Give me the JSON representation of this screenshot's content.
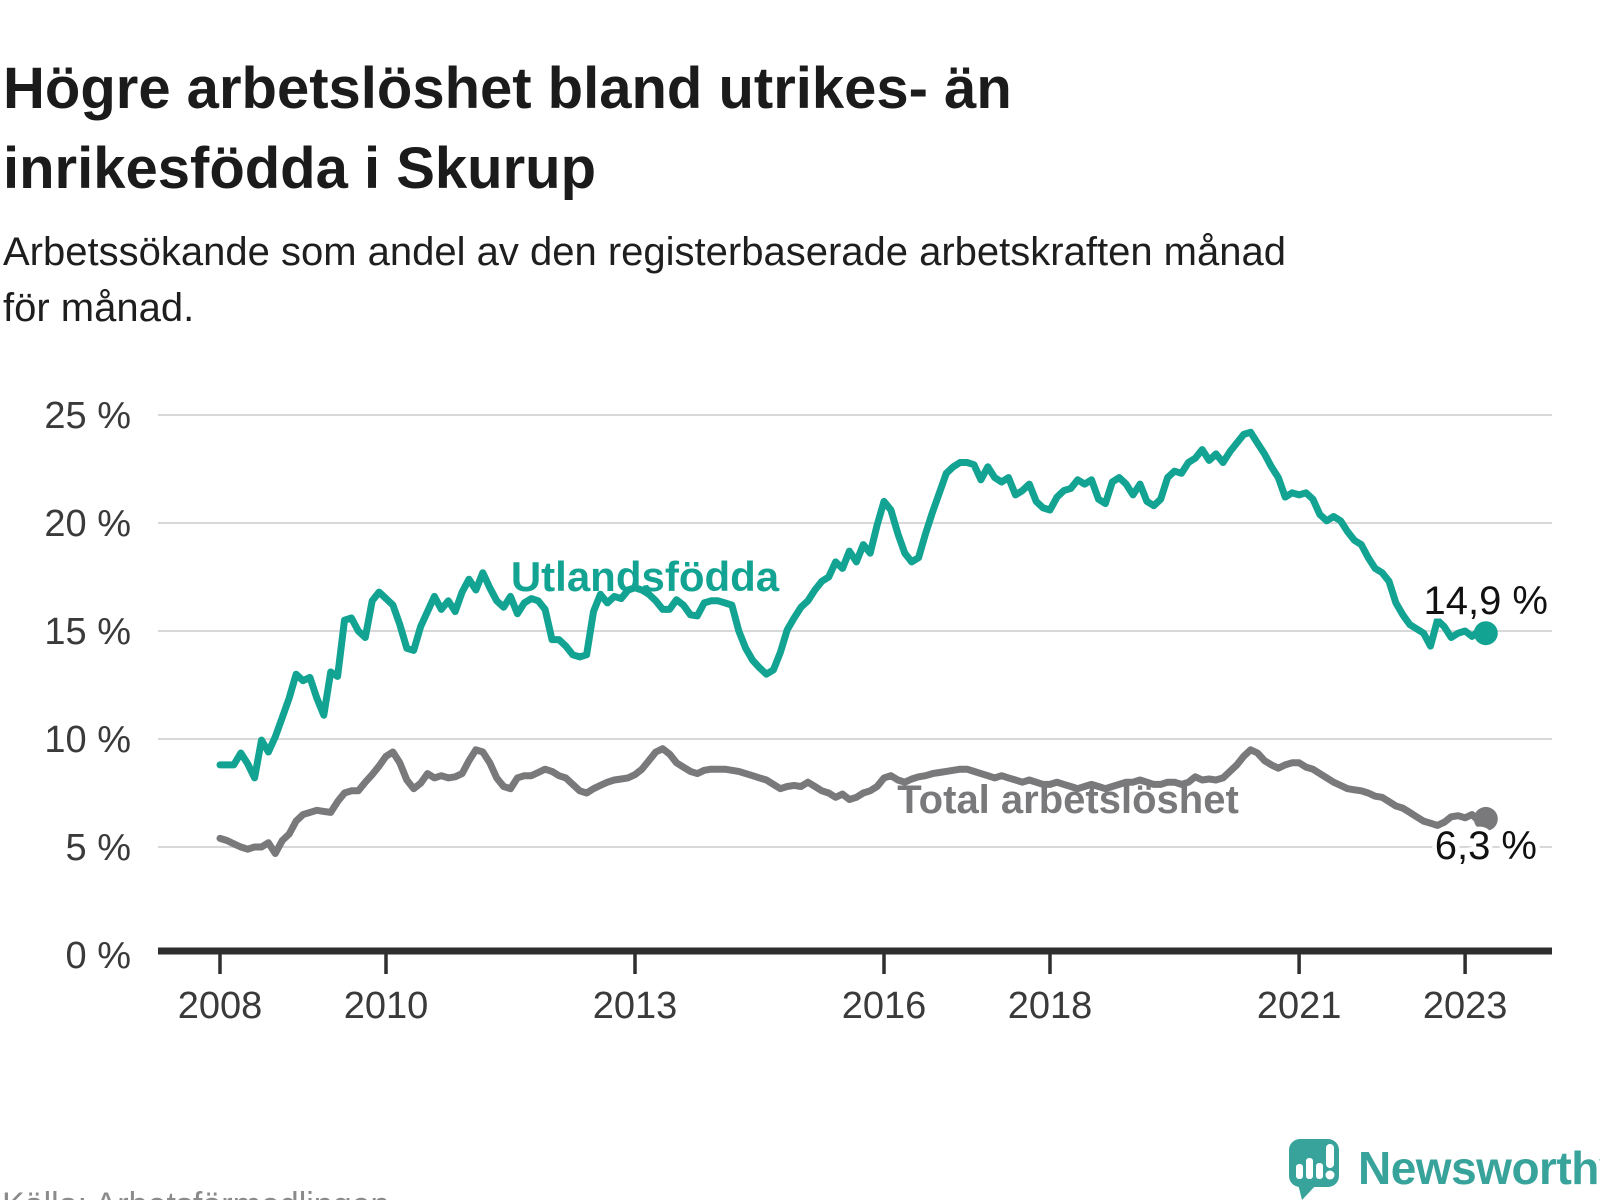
{
  "header": {
    "title": "Högre arbetslöshet bland utrikes- än\ninrikesfödda i Skurup",
    "subtitle": "Arbetssökande som andel av den registerbaserade arbetskraften månad\nför månad."
  },
  "footer": {
    "source": "Källa: Arbetsförmedlingen",
    "brand": "Newsworthy",
    "brand_icon": "newsworthy-speech-bubble-bar-chart-icon"
  },
  "colors": {
    "series_teal": "#12a392",
    "series_gray": "#79797b",
    "logo_teal": "#38a39b",
    "grid": "#d8d8d8",
    "axis": "#2e2e2e",
    "tick_text": "#3a3a3a"
  },
  "chart_data": {
    "type": "line",
    "unit": "%",
    "frequency": "monthly",
    "x_start": "2008-01",
    "x_end": "2023-04",
    "grid": "horizontal",
    "ylim": [
      0,
      26.5
    ],
    "ytick_values": [
      0,
      5,
      10,
      15,
      20,
      25
    ],
    "ytick_labels": [
      "0 %",
      "5 %",
      "10 %",
      "15 %",
      "20 %",
      "25 %"
    ],
    "xtick_years": [
      2008,
      2010,
      2013,
      2016,
      2018,
      2021,
      2023
    ],
    "xtick_labels": [
      "2008",
      "2010",
      "2013",
      "2016",
      "2018",
      "2021",
      "2023"
    ],
    "series": [
      {
        "name": "Utlandsfödda",
        "color": "#12a392",
        "end_label": "14,9 %",
        "end_value": 14.9,
        "values": [
          8.8,
          8.8,
          8.8,
          9.35,
          8.85,
          8.2,
          9.95,
          9.4,
          10.1,
          11.0,
          11.9,
          13.0,
          12.7,
          12.85,
          11.9,
          11.1,
          13.1,
          12.9,
          15.5,
          15.6,
          15.0,
          14.7,
          16.4,
          16.8,
          16.5,
          16.2,
          15.3,
          14.2,
          14.1,
          15.2,
          15.9,
          16.6,
          16.0,
          16.4,
          15.9,
          16.8,
          17.4,
          16.9,
          17.7,
          17.0,
          16.4,
          16.1,
          16.6,
          15.8,
          16.3,
          16.5,
          16.4,
          16.0,
          14.6,
          14.6,
          14.3,
          13.9,
          13.8,
          13.9,
          15.9,
          16.7,
          16.3,
          16.6,
          16.5,
          16.9,
          17.0,
          16.9,
          16.7,
          16.4,
          16.0,
          16.0,
          16.45,
          16.2,
          15.75,
          15.7,
          16.3,
          16.4,
          16.4,
          16.3,
          16.2,
          15.0,
          14.2,
          13.65,
          13.3,
          13.0,
          13.2,
          14.0,
          15.05,
          15.6,
          16.1,
          16.4,
          16.9,
          17.3,
          17.5,
          18.2,
          17.9,
          18.7,
          18.2,
          19.0,
          18.6,
          19.9,
          21.0,
          20.6,
          19.5,
          18.6,
          18.2,
          18.4,
          19.5,
          20.5,
          21.4,
          22.3,
          22.6,
          22.8,
          22.8,
          22.7,
          22.0,
          22.6,
          22.1,
          21.9,
          22.1,
          21.3,
          21.5,
          21.8,
          21.0,
          20.7,
          20.6,
          21.2,
          21.5,
          21.6,
          22.0,
          21.8,
          22.0,
          21.1,
          20.9,
          21.9,
          22.1,
          21.8,
          21.3,
          21.8,
          21.0,
          20.8,
          21.1,
          22.1,
          22.4,
          22.3,
          22.8,
          23.0,
          23.4,
          22.9,
          23.2,
          22.8,
          23.3,
          23.7,
          24.1,
          24.2,
          23.7,
          23.2,
          22.6,
          22.1,
          21.2,
          21.4,
          21.3,
          21.4,
          21.1,
          20.4,
          20.1,
          20.3,
          20.1,
          19.6,
          19.2,
          19.0,
          18.4,
          17.9,
          17.7,
          17.3,
          16.3,
          15.75,
          15.3,
          15.1,
          14.9,
          14.3,
          15.5,
          15.2,
          14.7,
          14.9,
          15.0,
          14.75,
          15.0,
          14.9
        ]
      },
      {
        "name": "Total arbetslöshet",
        "color": "#79797b",
        "end_label": "6,3 %",
        "end_value": 6.3,
        "values": [
          5.4,
          5.3,
          5.15,
          5.0,
          4.9,
          5.0,
          5.0,
          5.2,
          4.7,
          5.3,
          5.6,
          6.2,
          6.5,
          6.6,
          6.7,
          6.65,
          6.6,
          7.1,
          7.5,
          7.6,
          7.6,
          8.0,
          8.35,
          8.75,
          9.2,
          9.4,
          8.9,
          8.1,
          7.7,
          7.95,
          8.4,
          8.2,
          8.3,
          8.2,
          8.25,
          8.4,
          9.0,
          9.5,
          9.4,
          8.9,
          8.2,
          7.8,
          7.7,
          8.2,
          8.3,
          8.3,
          8.45,
          8.6,
          8.5,
          8.3,
          8.2,
          7.9,
          7.6,
          7.5,
          7.7,
          7.85,
          8.0,
          8.1,
          8.15,
          8.2,
          8.35,
          8.6,
          9.0,
          9.4,
          9.55,
          9.3,
          8.9,
          8.7,
          8.5,
          8.4,
          8.55,
          8.6,
          8.6,
          8.6,
          8.55,
          8.5,
          8.4,
          8.3,
          8.2,
          8.1,
          7.9,
          7.7,
          7.8,
          7.85,
          7.8,
          8.0,
          7.8,
          7.6,
          7.5,
          7.3,
          7.45,
          7.2,
          7.3,
          7.5,
          7.6,
          7.8,
          8.2,
          8.3,
          8.1,
          8.0,
          8.15,
          8.25,
          8.3,
          8.4,
          8.45,
          8.5,
          8.55,
          8.6,
          8.6,
          8.5,
          8.4,
          8.3,
          8.2,
          8.3,
          8.2,
          8.1,
          8.0,
          8.1,
          8.0,
          7.9,
          7.9,
          8.0,
          7.9,
          7.8,
          7.7,
          7.8,
          7.9,
          7.8,
          7.7,
          7.8,
          7.9,
          8.0,
          8.0,
          8.1,
          8.0,
          7.9,
          7.9,
          8.0,
          8.0,
          7.9,
          8.0,
          8.25,
          8.1,
          8.15,
          8.1,
          8.2,
          8.5,
          8.8,
          9.2,
          9.5,
          9.35,
          9.0,
          8.8,
          8.65,
          8.8,
          8.9,
          8.9,
          8.7,
          8.6,
          8.4,
          8.2,
          8.0,
          7.85,
          7.7,
          7.65,
          7.6,
          7.5,
          7.35,
          7.3,
          7.1,
          6.9,
          6.8,
          6.6,
          6.4,
          6.2,
          6.1,
          6.0,
          6.15,
          6.4,
          6.45,
          6.35,
          6.5,
          6.2,
          6.3
        ]
      }
    ]
  }
}
